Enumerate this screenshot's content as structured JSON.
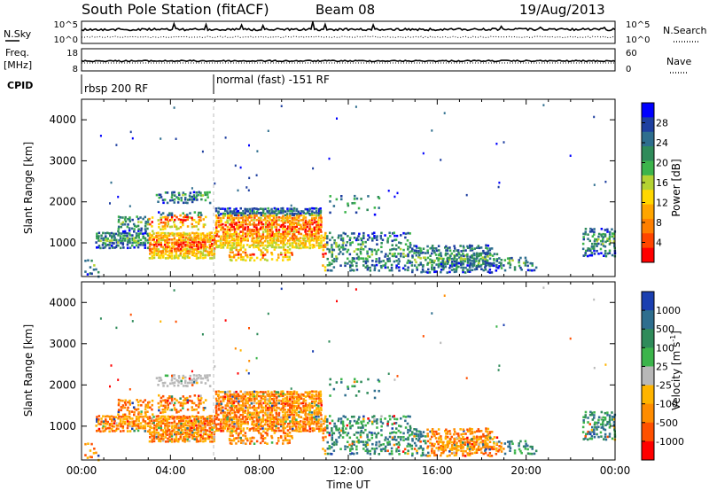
{
  "header": {
    "title": "South Pole Station (fitACF)",
    "beam": "Beam 08",
    "date": "19/Aug/2013"
  },
  "top_panels": {
    "nsky_label": "N.Sky",
    "nsearch_label": "N.Search",
    "nsky_ticks": [
      "10^5",
      "10^0"
    ],
    "nsearch_ticks": [
      "10^5",
      "10^0"
    ],
    "freq_label_1": "Freq.",
    "freq_label_2": "[MHz]",
    "freq_ticks": [
      "18",
      "8"
    ],
    "nave_label": "Nave",
    "nave_ticks": [
      "60",
      "0"
    ],
    "cpid_label": "CPID",
    "cpid_segments": [
      {
        "text": "rbsp 200 RF",
        "start_hour": 0
      },
      {
        "text": "normal (fast) -151 RF",
        "start_hour": 6
      }
    ]
  },
  "axes": {
    "xlabel": "Time UT",
    "ylabel": "Slant Range [km]",
    "x_ticks": [
      "00:00",
      "04:00",
      "08:00",
      "12:00",
      "16:00",
      "20:00",
      "00:00"
    ],
    "y_ticks": [
      "1000",
      "2000",
      "3000",
      "4000"
    ]
  },
  "colorbars": {
    "power": {
      "label": "Power [dB]",
      "ticks": [
        "4",
        "8",
        "12",
        "16",
        "20",
        "24",
        "28"
      ],
      "colors": [
        "#0000ff",
        "#1e3fa0",
        "#2e6e8e",
        "#2f8b5a",
        "#3cb44b",
        "#b4d232",
        "#ffd700",
        "#ffa500",
        "#ff7f00",
        "#ff4500",
        "#ff0000"
      ]
    },
    "velocity": {
      "label_main": "Velocity [m s",
      "label_sup": "-1",
      "label_end": "]",
      "ticks": [
        "1000",
        "500",
        "100",
        "25",
        "-25",
        "-100",
        "-500",
        "-1000"
      ],
      "colors": [
        "#1a3fb0",
        "#2e6e8e",
        "#2f8b5a",
        "#3cb44b",
        "#b8b8b8",
        "#ffb400",
        "#ff8c00",
        "#ff5000",
        "#ff0000"
      ]
    }
  },
  "chart_data": [
    {
      "type": "line",
      "title": "South Pole Station (fitACF)",
      "panel": "N.Sky / N.Search",
      "xlabel": "",
      "ylabel": "N.Sky",
      "xlim": [
        0,
        24
      ],
      "note": "sky noise ~10^3, search noise ~10^1.5 (log scale)"
    },
    {
      "type": "line",
      "panel": "Freq / Nave",
      "xlabel": "",
      "ylabel": "Freq. [MHz]",
      "ylim": [
        8,
        18
      ],
      "series": [
        {
          "name": "Freq.",
          "values_hint": "constant ~12 MHz"
        },
        {
          "name": "Nave",
          "values_hint": "constant ~30"
        }
      ]
    },
    {
      "type": "heatmap",
      "panel": "power",
      "xlabel": "",
      "ylabel": "Slant Range [km]",
      "xlim": [
        0,
        24
      ],
      "ylim": [
        180,
        4500
      ],
      "zlabel": "Power [dB]",
      "zlim": [
        0,
        32
      ]
    },
    {
      "type": "heatmap",
      "panel": "velocity",
      "xlabel": "Time UT",
      "ylabel": "Slant Range [km]",
      "xlim": [
        0,
        24
      ],
      "ylim": [
        180,
        4500
      ],
      "zlabel": "Velocity [m s-1]",
      "zlim": [
        -1000,
        1000
      ]
    }
  ]
}
